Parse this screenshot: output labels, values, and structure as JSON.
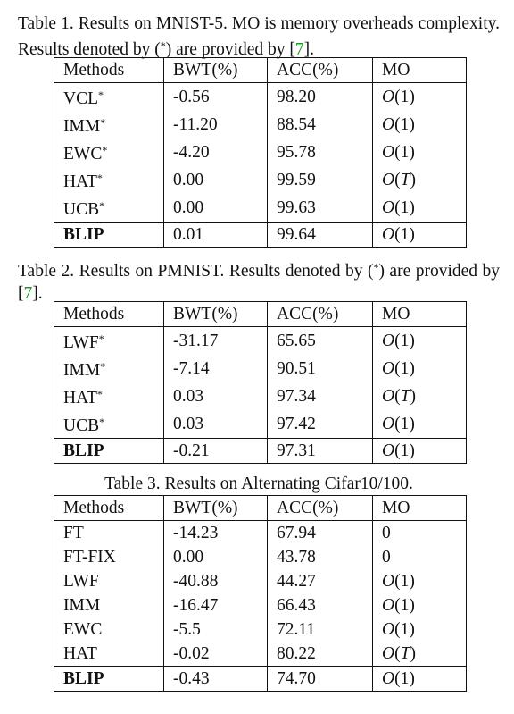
{
  "tables": [
    {
      "caption_parts": [
        "Table 1. Results on MNIST-5. MO is memory overheads complexity. Results denoted by (",
        "*",
        ") are provided by [",
        "7",
        "]."
      ],
      "headers": [
        "Methods",
        "BWT(%)",
        "ACC(%)",
        "MO"
      ],
      "rows": [
        {
          "method": "VCL",
          "star": "*",
          "bwt": "-0.56",
          "acc": "98.20",
          "mo": "1"
        },
        {
          "method": "IMM",
          "star": "*",
          "bwt": "-11.20",
          "acc": "88.54",
          "mo": "1"
        },
        {
          "method": "EWC",
          "star": "*",
          "bwt": "-4.20",
          "acc": "95.78",
          "mo": "1"
        },
        {
          "method": "HAT",
          "star": "*",
          "bwt": "0.00",
          "acc": "99.59",
          "mo": "T"
        },
        {
          "method": "UCB",
          "star": "*",
          "bwt": "0.00",
          "acc": "99.63",
          "mo": "1"
        },
        {
          "method": "BLIP",
          "star": "",
          "bwt": "0.01",
          "acc": "99.64",
          "mo": "1"
        }
      ]
    },
    {
      "caption_parts": [
        "Table 2. Results on PMNIST. Results denoted by (",
        "*",
        ") are provided by [",
        "7",
        "]."
      ],
      "headers": [
        "Methods",
        "BWT(%)",
        "ACC(%)",
        "MO"
      ],
      "rows": [
        {
          "method": "LWF",
          "star": "*",
          "bwt": "-31.17",
          "acc": "65.65",
          "mo": "1"
        },
        {
          "method": "IMM",
          "star": "*",
          "bwt": "-7.14",
          "acc": "90.51",
          "mo": "1"
        },
        {
          "method": "HAT",
          "star": "*",
          "bwt": "0.03",
          "acc": "97.34",
          "mo": "T"
        },
        {
          "method": "UCB",
          "star": "*",
          "bwt": "0.03",
          "acc": "97.42",
          "mo": "1"
        },
        {
          "method": "BLIP",
          "star": "",
          "bwt": "-0.21",
          "acc": "97.31",
          "mo": "1"
        }
      ]
    },
    {
      "caption_parts": [
        "Table 3. Results on Alternating Cifar10/100."
      ],
      "headers": [
        "Methods",
        "BWT(%)",
        "ACC(%)",
        "MO"
      ],
      "rows": [
        {
          "method": "FT",
          "star": "",
          "bwt": "-14.23",
          "acc": "67.94",
          "mo_plain": "0"
        },
        {
          "method": "FT-FIX",
          "star": "",
          "bwt": "0.00",
          "acc": "43.78",
          "mo_plain": "0"
        },
        {
          "method": "LWF",
          "star": "",
          "bwt": "-40.88",
          "acc": "44.27",
          "mo": "1"
        },
        {
          "method": "IMM",
          "star": "",
          "bwt": "-16.47",
          "acc": "66.43",
          "mo": "1"
        },
        {
          "method": "EWC",
          "star": "",
          "bwt": "-5.5",
          "acc": "72.11",
          "mo": "1"
        },
        {
          "method": "HAT",
          "star": "",
          "bwt": "-0.02",
          "acc": "80.22",
          "mo": "T"
        },
        {
          "method": "BLIP",
          "star": "",
          "bwt": "-0.43",
          "acc": "74.70",
          "mo": "1"
        }
      ]
    }
  ]
}
